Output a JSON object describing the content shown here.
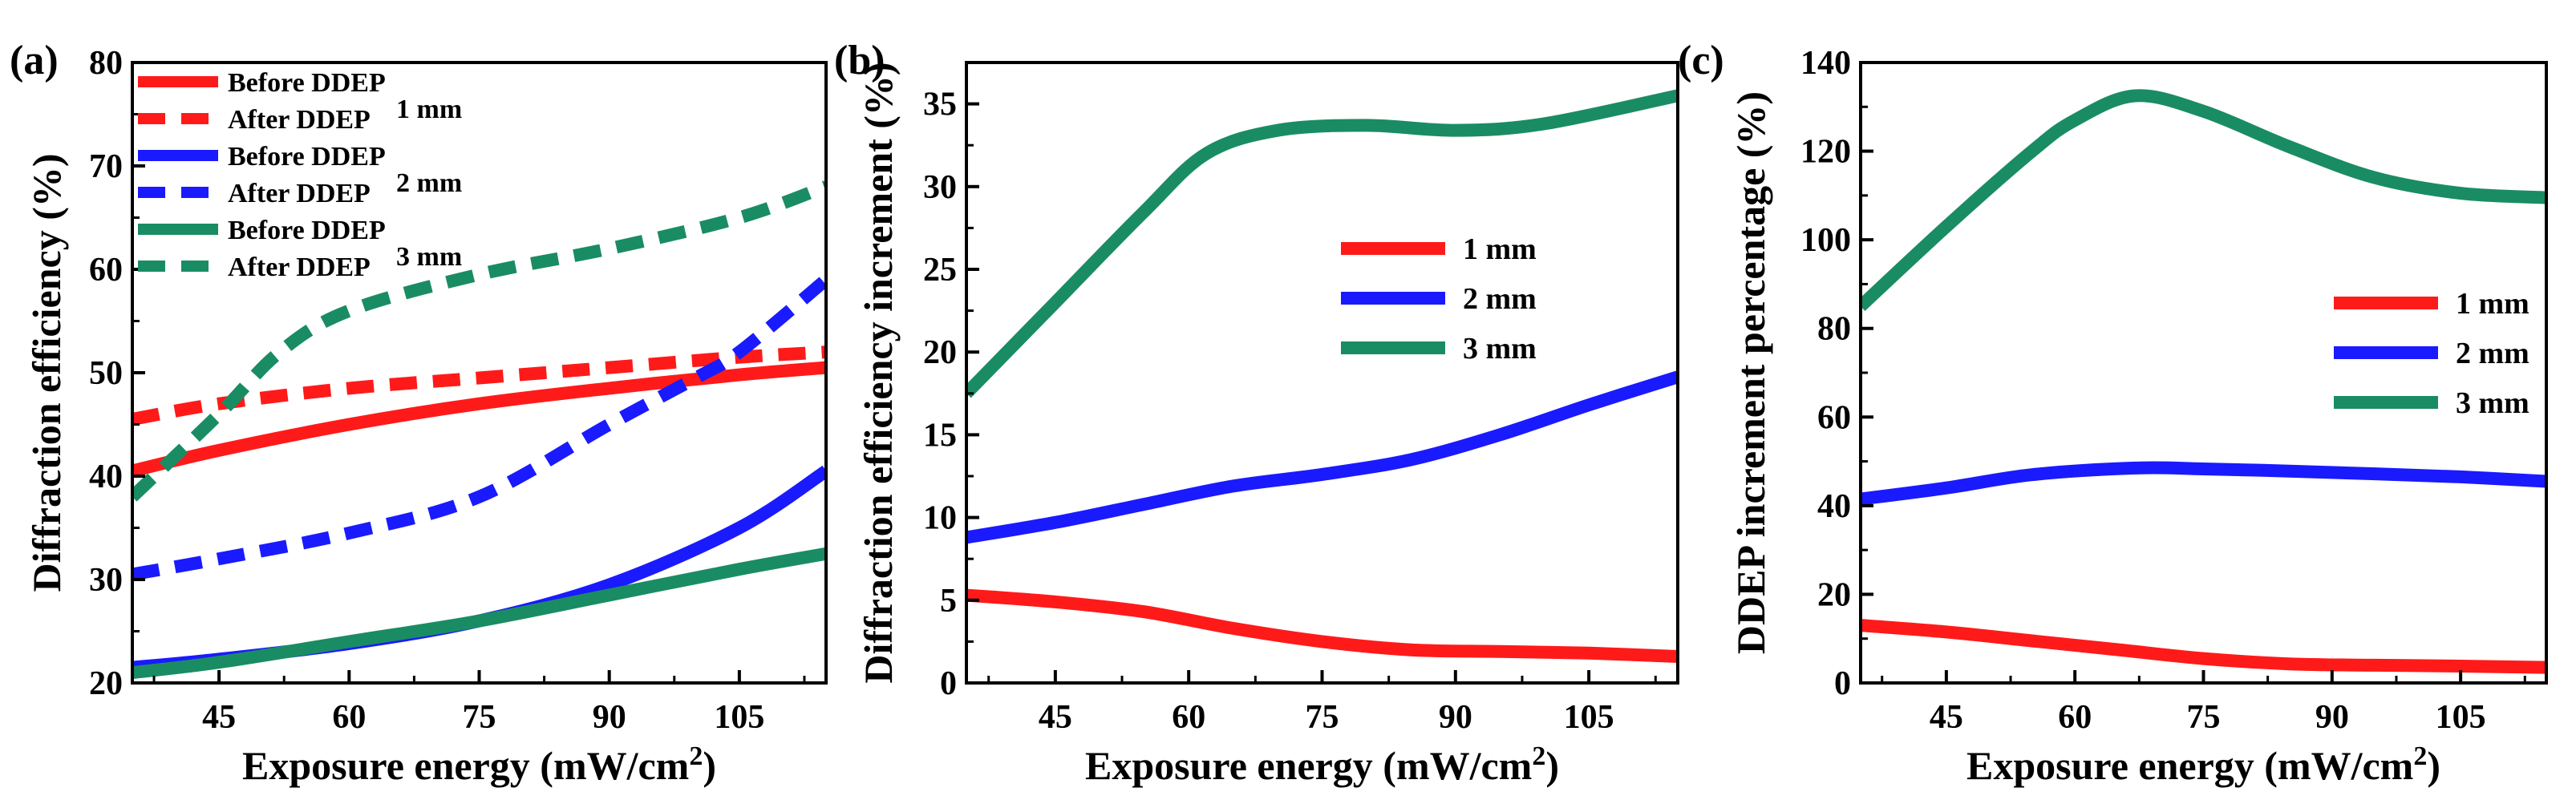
{
  "figure": {
    "colors": {
      "1 mm": "#ff1a1a",
      "2 mm": "#1a1aff",
      "3 mm": "#1a8c64"
    }
  },
  "chart_data": [
    {
      "panel": "(a)",
      "type": "line",
      "xlabel": "Exposure energy (mW/cm²)",
      "ylabel": "Diffraction efficiency (%)",
      "xlim": [
        35,
        115
      ],
      "ylim": [
        20,
        80
      ],
      "xticks": [
        45,
        60,
        75,
        90,
        105
      ],
      "yticks": [
        20,
        30,
        40,
        50,
        60,
        70,
        80
      ],
      "legend_groups": [
        {
          "name": "1 mm",
          "color": "#ff1a1a",
          "entries": [
            "Before DDEP",
            "After DDEP"
          ]
        },
        {
          "name": "2 mm",
          "color": "#1a1aff",
          "entries": [
            "Before DDEP",
            "After DDEP"
          ]
        },
        {
          "name": "3 mm",
          "color": "#1a8c64",
          "entries": [
            "Before DDEP",
            "After DDEP"
          ]
        }
      ],
      "legend_position": "top-left",
      "series": [
        {
          "name": "Before DDEP 1 mm",
          "color": "#ff1a1a",
          "dash": false,
          "x": [
            35,
            45,
            60,
            75,
            90,
            105,
            115
          ],
          "y": [
            40.5,
            42.5,
            45.0,
            47.0,
            48.5,
            49.8,
            50.5
          ]
        },
        {
          "name": "After DDEP 1 mm",
          "color": "#ff1a1a",
          "dash": true,
          "x": [
            35,
            45,
            60,
            75,
            90,
            105,
            115
          ],
          "y": [
            45.5,
            47.0,
            48.5,
            49.5,
            50.5,
            51.5,
            52.0
          ]
        },
        {
          "name": "Before DDEP 2 mm",
          "color": "#1a1aff",
          "dash": false,
          "x": [
            35,
            45,
            60,
            75,
            90,
            105,
            115
          ],
          "y": [
            21.5,
            22.3,
            23.8,
            26.0,
            29.5,
            35.0,
            40.5
          ]
        },
        {
          "name": "After DDEP 2 mm",
          "color": "#1a1aff",
          "dash": true,
          "x": [
            35,
            45,
            60,
            75,
            90,
            100,
            105,
            115
          ],
          "y": [
            30.5,
            32.0,
            34.5,
            38.0,
            45.0,
            49.5,
            52.0,
            59.0
          ]
        },
        {
          "name": "Before DDEP 3 mm",
          "color": "#1a8c64",
          "dash": false,
          "x": [
            35,
            45,
            60,
            75,
            90,
            105,
            115
          ],
          "y": [
            21.0,
            22.0,
            24.0,
            26.0,
            28.5,
            31.0,
            32.5
          ]
        },
        {
          "name": "After DDEP 3 mm",
          "color": "#1a8c64",
          "dash": true,
          "x": [
            35,
            45,
            52,
            60,
            75,
            90,
            105,
            115
          ],
          "y": [
            38.0,
            46.0,
            52.0,
            56.0,
            59.5,
            62.0,
            65.0,
            68.0
          ]
        }
      ]
    },
    {
      "panel": "(b)",
      "type": "line",
      "xlabel": "Exposure energy (mW/cm²)",
      "ylabel": "Diffraction efficiency increment (%)",
      "xlim": [
        35,
        115
      ],
      "ylim": [
        0,
        37.5
      ],
      "xticks": [
        45,
        60,
        75,
        90,
        105
      ],
      "yticks": [
        0,
        5,
        10,
        15,
        20,
        25,
        30,
        35
      ],
      "legend_position": "center-right",
      "series": [
        {
          "name": "1 mm",
          "color": "#ff1a1a",
          "x": [
            35,
            45,
            55,
            65,
            75,
            85,
            95,
            105,
            115
          ],
          "y": [
            5.3,
            4.9,
            4.3,
            3.3,
            2.5,
            2.0,
            1.9,
            1.8,
            1.6
          ]
        },
        {
          "name": "2 mm",
          "color": "#1a1aff",
          "x": [
            35,
            45,
            55,
            65,
            75,
            85,
            95,
            105,
            115
          ],
          "y": [
            8.8,
            9.7,
            10.8,
            11.9,
            12.6,
            13.5,
            15.0,
            16.8,
            18.5
          ]
        },
        {
          "name": "3 mm",
          "color": "#1a8c64",
          "x": [
            35,
            45,
            55,
            62,
            70,
            80,
            90,
            100,
            115
          ],
          "y": [
            17.5,
            23.0,
            28.5,
            32.0,
            33.4,
            33.7,
            33.4,
            33.8,
            35.5
          ]
        }
      ]
    },
    {
      "panel": "(c)",
      "type": "line",
      "xlabel": "Exposure energy (mW/cm²)",
      "ylabel": "DDEP increment percentage (%)",
      "xlim": [
        35,
        115
      ],
      "ylim": [
        0,
        140
      ],
      "xticks": [
        45,
        60,
        75,
        90,
        105
      ],
      "yticks": [
        0,
        20,
        40,
        60,
        80,
        100,
        120,
        140
      ],
      "legend_position": "center-right",
      "series": [
        {
          "name": "1 mm",
          "color": "#ff1a1a",
          "x": [
            35,
            45,
            55,
            65,
            75,
            85,
            95,
            105,
            115
          ],
          "y": [
            13.0,
            11.5,
            9.5,
            7.5,
            5.5,
            4.3,
            4.0,
            3.8,
            3.5
          ]
        },
        {
          "name": "2 mm",
          "color": "#1a1aff",
          "x": [
            35,
            45,
            55,
            67,
            75,
            85,
            95,
            105,
            115
          ],
          "y": [
            41.5,
            44.0,
            47.0,
            48.5,
            48.3,
            47.8,
            47.2,
            46.5,
            45.5
          ]
        },
        {
          "name": "3 mm",
          "color": "#1a8c64",
          "x": [
            35,
            45,
            55,
            60,
            67,
            75,
            85,
            95,
            105,
            115
          ],
          "y": [
            85.0,
            103.0,
            120.0,
            127.0,
            132.5,
            129.0,
            121.0,
            114.0,
            110.5,
            109.5
          ]
        }
      ]
    }
  ]
}
